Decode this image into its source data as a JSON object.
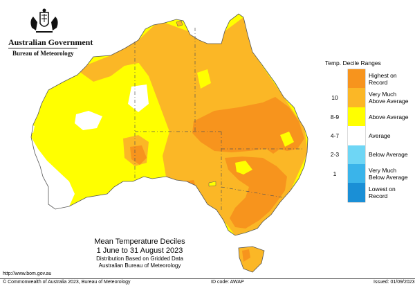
{
  "header": {
    "government": "Australian Government",
    "agency": "Bureau of Meteorology",
    "crest_icon": "coat-of-arms-icon"
  },
  "map_title": {
    "line1": "Mean Temperature Deciles",
    "line2": "1 June to 31 August 2023",
    "line3": "Distribution Based on Gridded Data",
    "line4": "Australian Bureau of Meteorology"
  },
  "legend": {
    "title": "Temp. Decile Ranges",
    "items": [
      {
        "code": "",
        "label": "Highest on Record",
        "color": "#f7941d"
      },
      {
        "code": "10",
        "label": "Very Much Above Average",
        "color": "#fbb726"
      },
      {
        "code": "8-9",
        "label": "Above Average",
        "color": "#ffff00"
      },
      {
        "code": "4-7",
        "label": "Average",
        "color": "#ffffff"
      },
      {
        "code": "2-3",
        "label": "Below Average",
        "color": "#6ed6f5"
      },
      {
        "code": "1",
        "label": "Very Much Below Average",
        "color": "#3ab4ea"
      },
      {
        "code": "",
        "label": "Lowest on Record",
        "color": "#1a8fd6"
      }
    ]
  },
  "footer": {
    "url": "http://www.bom.gov.au",
    "copyright": "© Commonwealth of Australia 2023, Bureau of Meteorology",
    "id_code": "ID code: AWAP",
    "issued": "Issued: 01/09/2023"
  }
}
